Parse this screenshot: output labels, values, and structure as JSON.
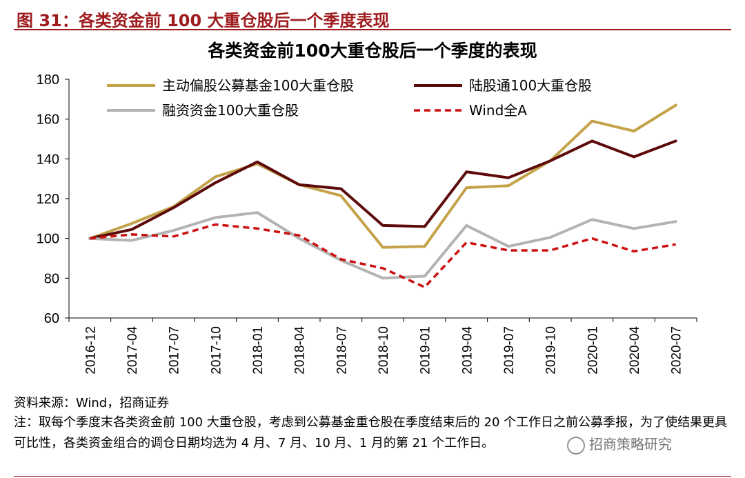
{
  "figure": {
    "label": "图 31：各类资金前 100 大重仓股后一个季度表现"
  },
  "source_text": "资料来源：Wind，招商证券",
  "note_text": "注：取每个季度末各类资金前 100 大重仓股，考虑到公募基金重仓股在季度结束后的 20 个工作日之前公募季报，为了使结果更具可比性，各类资金组合的调仓日期均选为 4 月、7 月、10 月、1 月的第 21 个工作日。",
  "watermark": "招商策略研究",
  "colors": {
    "brand_red": "#9e1b1e",
    "gold": "#c4a24a",
    "dark_red": "#5c0a0a",
    "gray": "#b3b3b3",
    "wind_red": "#cc1010"
  },
  "chart_data": {
    "type": "line",
    "title": "各类资金前100大重仓股后一个季度的表现",
    "categories": [
      "2016-12",
      "2017-04",
      "2017-07",
      "2017-10",
      "2018-01",
      "2018-04",
      "2018-07",
      "2018-10",
      "2019-01",
      "2019-04",
      "2019-07",
      "2019-10",
      "2020-01",
      "2020-04",
      "2020-07"
    ],
    "ylim": [
      60,
      180
    ],
    "yticks": [
      60,
      80,
      100,
      120,
      140,
      160,
      180
    ],
    "grid": false,
    "legend_position": "top",
    "series": [
      {
        "name": "主动偏股公募基金100大重仓股",
        "color": "#c4a24a",
        "style": "solid",
        "values": [
          100,
          107.5,
          116,
          131,
          137.5,
          127,
          121.5,
          95.5,
          96,
          125.5,
          126.5,
          139,
          159,
          154,
          167
        ]
      },
      {
        "name": "陆股通100大重仓股",
        "color": "#5c0a0a",
        "style": "solid",
        "values": [
          100,
          104.5,
          115.5,
          128,
          138.5,
          127,
          125,
          106.5,
          106,
          133.5,
          130.5,
          139,
          149,
          141,
          149
        ]
      },
      {
        "name": "融资资金100大重仓股",
        "color": "#b3b3b3",
        "style": "solid",
        "values": [
          100,
          99,
          104,
          110.5,
          113,
          100,
          89,
          80,
          81,
          106.5,
          96,
          100.5,
          109.5,
          105,
          108.5
        ]
      },
      {
        "name": "Wind全A",
        "color": "#cc1010",
        "style": "dashed",
        "values": [
          100,
          102,
          101,
          107,
          105,
          101.5,
          89.5,
          85,
          75.5,
          98,
          94,
          94,
          100,
          93.5,
          97
        ]
      }
    ]
  }
}
